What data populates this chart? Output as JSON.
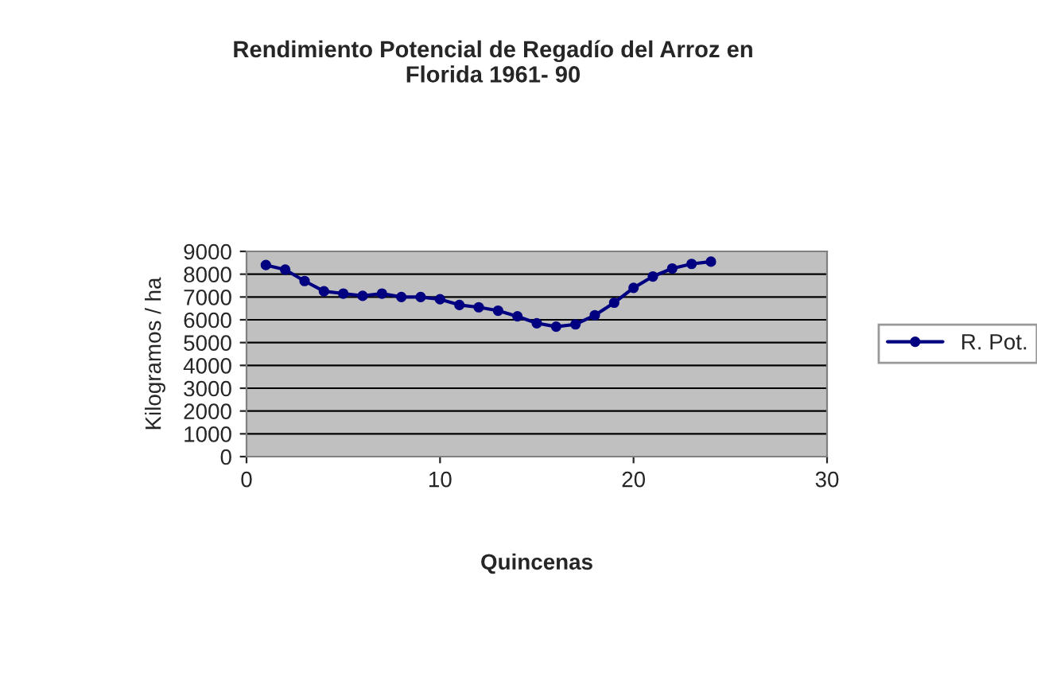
{
  "chart_data": {
    "type": "line",
    "title": "Rendimiento Potencial de Regadío del Arroz en\nFlorida 1961- 90",
    "xlabel": "Quincenas",
    "ylabel": "Kilogramos / ha",
    "series": [
      {
        "name": "R. Pot.",
        "color": "#000080",
        "x": [
          1,
          2,
          3,
          4,
          5,
          6,
          7,
          8,
          9,
          10,
          11,
          12,
          13,
          14,
          15,
          16,
          17,
          18,
          19,
          20,
          21,
          22,
          23,
          24
        ],
        "values": [
          8400,
          8200,
          7700,
          7250,
          7150,
          7050,
          7150,
          7000,
          7000,
          6900,
          6650,
          6550,
          6400,
          6150,
          5850,
          5700,
          5800,
          6200,
          6750,
          7400,
          7900,
          8250,
          8450,
          8550
        ]
      }
    ],
    "xlim": [
      0,
      30
    ],
    "xticks": [
      0,
      10,
      20,
      30
    ],
    "ylim": [
      0,
      9000
    ],
    "yticks": [
      0,
      1000,
      2000,
      3000,
      4000,
      5000,
      6000,
      7000,
      8000,
      9000
    ],
    "grid": "y",
    "legend": "right",
    "marker": "circle",
    "line_style": "solid"
  }
}
